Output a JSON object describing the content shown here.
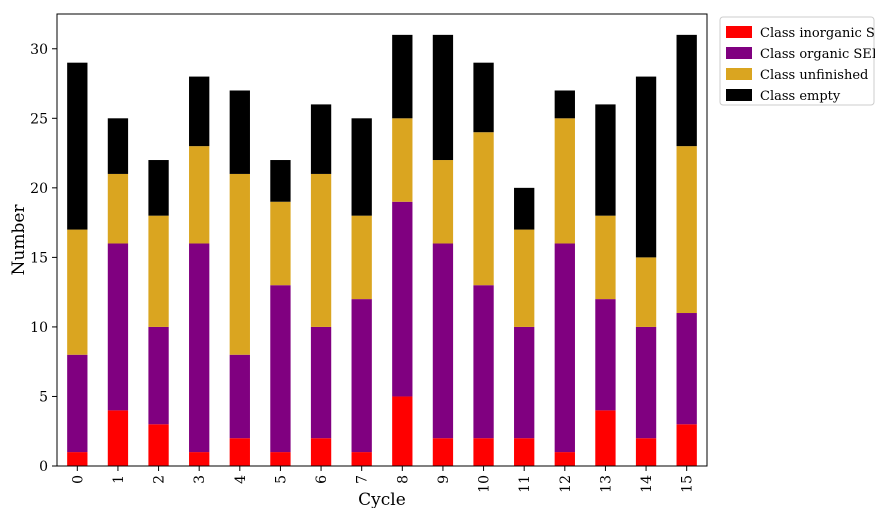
{
  "chart_data": {
    "type": "bar",
    "stacked": true,
    "title": "",
    "xlabel": "Cycle",
    "ylabel": "Number",
    "ylim": [
      0,
      32.5
    ],
    "yticks": [
      0,
      5,
      10,
      15,
      20,
      25,
      30
    ],
    "grid": false,
    "legend_position": "outside-top-right",
    "categories": [
      "0",
      "1",
      "2",
      "3",
      "4",
      "5",
      "6",
      "7",
      "8",
      "9",
      "10",
      "11",
      "12",
      "13",
      "14",
      "15"
    ],
    "series": [
      {
        "name": "Class inorganic SEI",
        "color": "#ff0000",
        "values": [
          1,
          4,
          3,
          1,
          2,
          1,
          2,
          1,
          5,
          2,
          2,
          2,
          1,
          4,
          2,
          3
        ]
      },
      {
        "name": "Class organic SEI",
        "color": "#800080",
        "values": [
          7,
          12,
          7,
          15,
          6,
          12,
          8,
          11,
          14,
          14,
          11,
          8,
          15,
          8,
          8,
          8
        ]
      },
      {
        "name": "Class unfinished",
        "color": "#daa520",
        "values": [
          9,
          5,
          8,
          7,
          13,
          6,
          11,
          6,
          6,
          6,
          11,
          7,
          9,
          6,
          5,
          12
        ]
      },
      {
        "name": "Class empty",
        "color": "#000000",
        "values": [
          12,
          4,
          4,
          5,
          6,
          3,
          5,
          7,
          6,
          9,
          5,
          3,
          2,
          8,
          13,
          8
        ]
      }
    ]
  }
}
